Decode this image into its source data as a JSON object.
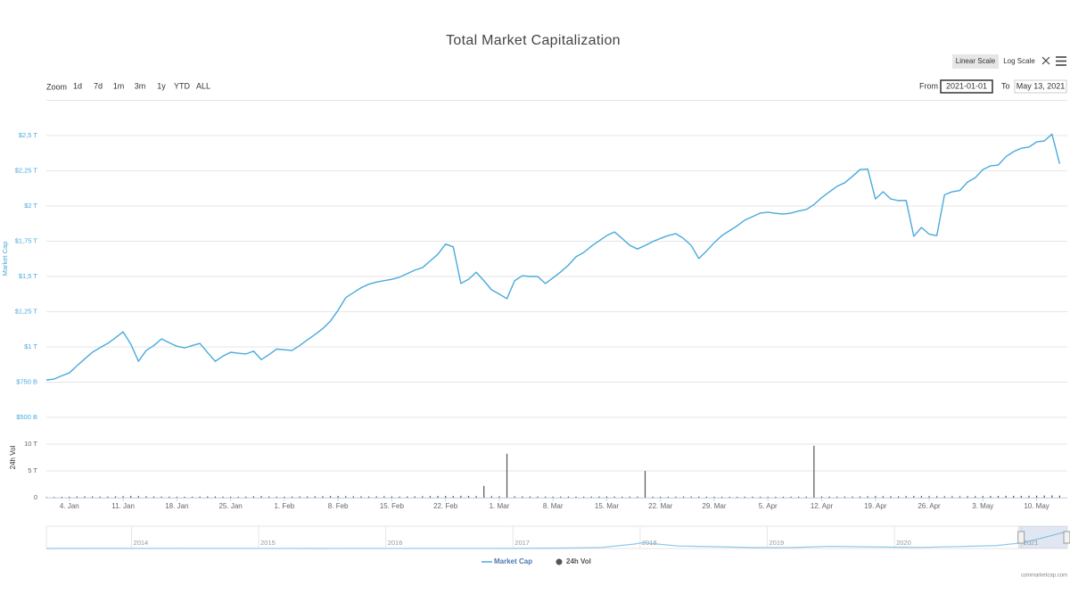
{
  "ui": {
    "zoom_label": "Zoom",
    "zoom_buttons": [
      "1d",
      "7d",
      "1m",
      "3m",
      "1y",
      "YTD",
      "ALL"
    ],
    "from_label": "From",
    "from_value": "2021-01-01",
    "to_label": "To",
    "to_value": "May 13, 2021",
    "scale_buttons": [
      "Linear Scale",
      "Log Scale"
    ],
    "credit": "coinmarketcap.com"
  },
  "chart_data": {
    "type": "line",
    "title": "Total Market Capitalization",
    "log_scale": false,
    "grid": true,
    "x": [
      "2021-01-01",
      "2021-01-02",
      "2021-01-03",
      "2021-01-04",
      "2021-01-05",
      "2021-01-06",
      "2021-01-07",
      "2021-01-08",
      "2021-01-09",
      "2021-01-10",
      "2021-01-11",
      "2021-01-12",
      "2021-01-13",
      "2021-01-14",
      "2021-01-15",
      "2021-01-16",
      "2021-01-17",
      "2021-01-18",
      "2021-01-19",
      "2021-01-20",
      "2021-01-21",
      "2021-01-22",
      "2021-01-23",
      "2021-01-24",
      "2021-01-25",
      "2021-01-26",
      "2021-01-27",
      "2021-01-28",
      "2021-01-29",
      "2021-01-30",
      "2021-01-31",
      "2021-02-01",
      "2021-02-02",
      "2021-02-03",
      "2021-02-04",
      "2021-02-05",
      "2021-02-06",
      "2021-02-07",
      "2021-02-08",
      "2021-02-09",
      "2021-02-10",
      "2021-02-11",
      "2021-02-12",
      "2021-02-13",
      "2021-02-14",
      "2021-02-15",
      "2021-02-16",
      "2021-02-17",
      "2021-02-18",
      "2021-02-19",
      "2021-02-20",
      "2021-02-21",
      "2021-02-22",
      "2021-02-23",
      "2021-02-24",
      "2021-02-25",
      "2021-02-26",
      "2021-02-27",
      "2021-02-28",
      "2021-03-01",
      "2021-03-02",
      "2021-03-03",
      "2021-03-04",
      "2021-03-05",
      "2021-03-06",
      "2021-03-07",
      "2021-03-08",
      "2021-03-09",
      "2021-03-10",
      "2021-03-11",
      "2021-03-12",
      "2021-03-13",
      "2021-03-14",
      "2021-03-15",
      "2021-03-16",
      "2021-03-17",
      "2021-03-18",
      "2021-03-19",
      "2021-03-20",
      "2021-03-21",
      "2021-03-22",
      "2021-03-23",
      "2021-03-24",
      "2021-03-25",
      "2021-03-26",
      "2021-03-27",
      "2021-03-28",
      "2021-03-29",
      "2021-03-30",
      "2021-03-31",
      "2021-04-01",
      "2021-04-02",
      "2021-04-03",
      "2021-04-04",
      "2021-04-05",
      "2021-04-06",
      "2021-04-07",
      "2021-04-08",
      "2021-04-09",
      "2021-04-10",
      "2021-04-11",
      "2021-04-12",
      "2021-04-13",
      "2021-04-14",
      "2021-04-15",
      "2021-04-16",
      "2021-04-17",
      "2021-04-18",
      "2021-04-19",
      "2021-04-20",
      "2021-04-21",
      "2021-04-22",
      "2021-04-23",
      "2021-04-24",
      "2021-04-25",
      "2021-04-26",
      "2021-04-27",
      "2021-04-28",
      "2021-04-29",
      "2021-04-30",
      "2021-05-01",
      "2021-05-02",
      "2021-05-03",
      "2021-05-04",
      "2021-05-05",
      "2021-05-06",
      "2021-05-07",
      "2021-05-08",
      "2021-05-09",
      "2021-05-10",
      "2021-05-11",
      "2021-05-12",
      "2021-05-13"
    ],
    "xlim": [
      "2021-01-01",
      "2021-05-14"
    ],
    "xticks": [
      {
        "value": "2021-01-04",
        "label": "4. Jan"
      },
      {
        "value": "2021-01-11",
        "label": "11. Jan"
      },
      {
        "value": "2021-01-18",
        "label": "18. Jan"
      },
      {
        "value": "2021-01-25",
        "label": "25. Jan"
      },
      {
        "value": "2021-02-01",
        "label": "1. Feb"
      },
      {
        "value": "2021-02-08",
        "label": "8. Feb"
      },
      {
        "value": "2021-02-15",
        "label": "15. Feb"
      },
      {
        "value": "2021-02-22",
        "label": "22. Feb"
      },
      {
        "value": "2021-03-01",
        "label": "1. Mar"
      },
      {
        "value": "2021-03-08",
        "label": "8. Mar"
      },
      {
        "value": "2021-03-15",
        "label": "15. Mar"
      },
      {
        "value": "2021-03-22",
        "label": "22. Mar"
      },
      {
        "value": "2021-03-29",
        "label": "29. Mar"
      },
      {
        "value": "2021-04-05",
        "label": "5. Apr"
      },
      {
        "value": "2021-04-12",
        "label": "12. Apr"
      },
      {
        "value": "2021-04-19",
        "label": "19. Apr"
      },
      {
        "value": "2021-04-26",
        "label": "26. Apr"
      },
      {
        "value": "2021-05-03",
        "label": "3. May"
      },
      {
        "value": "2021-05-10",
        "label": "10. May"
      }
    ],
    "ylabel": "Market Cap",
    "ylim": [
      500,
      2750
    ],
    "yticks": [
      {
        "value": 500,
        "label": "$500 B"
      },
      {
        "value": 750,
        "label": "$750 B"
      },
      {
        "value": 1000,
        "label": "$1 T"
      },
      {
        "value": 1250,
        "label": "$1,25 T"
      },
      {
        "value": 1500,
        "label": "$1,5 T"
      },
      {
        "value": 1750,
        "label": "$1,75 T"
      },
      {
        "value": 2000,
        "label": "$2 T"
      },
      {
        "value": 2250,
        "label": "$2,25 T"
      },
      {
        "value": 2500,
        "label": "$2,5 T"
      }
    ],
    "y2label": "24h Vol",
    "y2lim": [
      0,
      11000
    ],
    "y2ticks": [
      0,
      {
        "value": 5000,
        "label": "5 T"
      },
      {
        "value": 10000,
        "label": "10 T"
      }
    ],
    "series": [
      {
        "name": "Market Cap",
        "color": "#4aaadc",
        "values": [
          765,
          772,
          795,
          816,
          867,
          915,
          962,
          995,
          1025,
          1065,
          1107,
          1020,
          898,
          975,
          1010,
          1057,
          1030,
          1005,
          993,
          1010,
          1025,
          960,
          898,
          935,
          962,
          955,
          950,
          970,
          910,
          945,
          985,
          980,
          975,
          1010,
          1050,
          1088,
          1130,
          1183,
          1260,
          1350,
          1385,
          1420,
          1445,
          1460,
          1470,
          1480,
          1495,
          1520,
          1545,
          1563,
          1610,
          1658,
          1730,
          1710,
          1450,
          1480,
          1530,
          1470,
          1405,
          1375,
          1342,
          1470,
          1505,
          1500,
          1500,
          1450,
          1490,
          1532,
          1580,
          1640,
          1670,
          1715,
          1753,
          1790,
          1816,
          1770,
          1721,
          1695,
          1720,
          1748,
          1770,
          1790,
          1804,
          1770,
          1720,
          1627,
          1680,
          1740,
          1790,
          1825,
          1860,
          1900,
          1925,
          1950,
          1956,
          1948,
          1943,
          1950,
          1965,
          1975,
          2010,
          2060,
          2100,
          2140,
          2165,
          2210,
          2259,
          2262,
          2050,
          2101,
          2050,
          2038,
          2040,
          1785,
          1848,
          1800,
          1790,
          2080,
          2101,
          2110,
          2170,
          2200,
          2259,
          2285,
          2291,
          2350,
          2386,
          2410,
          2418,
          2455,
          2462,
          2510,
          2300
        ]
      },
      {
        "name": "24h Vol",
        "color": "#555555",
        "type": "column",
        "axis": "y2",
        "values": [
          120,
          130,
          160,
          190,
          230,
          250,
          240,
          200,
          210,
          250,
          290,
          330,
          300,
          260,
          230,
          210,
          190,
          180,
          170,
          190,
          220,
          240,
          230,
          200,
          190,
          180,
          210,
          260,
          300,
          220,
          200,
          180,
          210,
          240,
          230,
          260,
          280,
          300,
          320,
          280,
          260,
          250,
          230,
          240,
          260,
          240,
          220,
          230,
          250,
          270,
          300,
          320,
          330,
          310,
          350,
          330,
          300,
          2200,
          280,
          260,
          8200,
          260,
          240,
          230,
          220,
          210,
          200,
          210,
          220,
          200,
          190,
          200,
          220,
          230,
          210,
          190,
          200,
          210,
          5000,
          200,
          190,
          180,
          190,
          220,
          230,
          210,
          190,
          180,
          170,
          160,
          170,
          180,
          190,
          170,
          160,
          170,
          180,
          190,
          200,
          210,
          9700,
          230,
          220,
          200,
          210,
          220,
          240,
          260,
          300,
          280,
          270,
          250,
          300,
          320,
          310,
          290,
          270,
          260,
          250,
          260,
          280,
          290,
          300,
          320,
          330,
          350,
          340,
          330,
          360,
          380,
          400,
          420,
          390
        ]
      }
    ],
    "navigator": {
      "color": "#8cc8ea",
      "xlim": [
        2013.33,
        2021.36
      ],
      "xticks": [
        2014,
        2015,
        2016,
        2017,
        2018,
        2019,
        2020,
        2021
      ],
      "ylim": [
        0,
        2600
      ],
      "x": [
        2013.33,
        2013.9,
        2014.5,
        2015,
        2015.5,
        2016,
        2016.5,
        2017,
        2017.4,
        2017.7,
        2017.95,
        2018.02,
        2018.3,
        2018.6,
        2018.9,
        2019.2,
        2019.5,
        2019.9,
        2020.2,
        2020.5,
        2020.8,
        2021.0,
        2021.15,
        2021.3,
        2021.36
      ],
      "values": [
        1.5,
        12,
        8,
        5,
        4,
        7,
        10,
        18,
        60,
        150,
        600,
        800,
        350,
        250,
        120,
        140,
        300,
        200,
        150,
        270,
        400,
        770,
        1400,
        2100,
        2300
      ]
    }
  }
}
